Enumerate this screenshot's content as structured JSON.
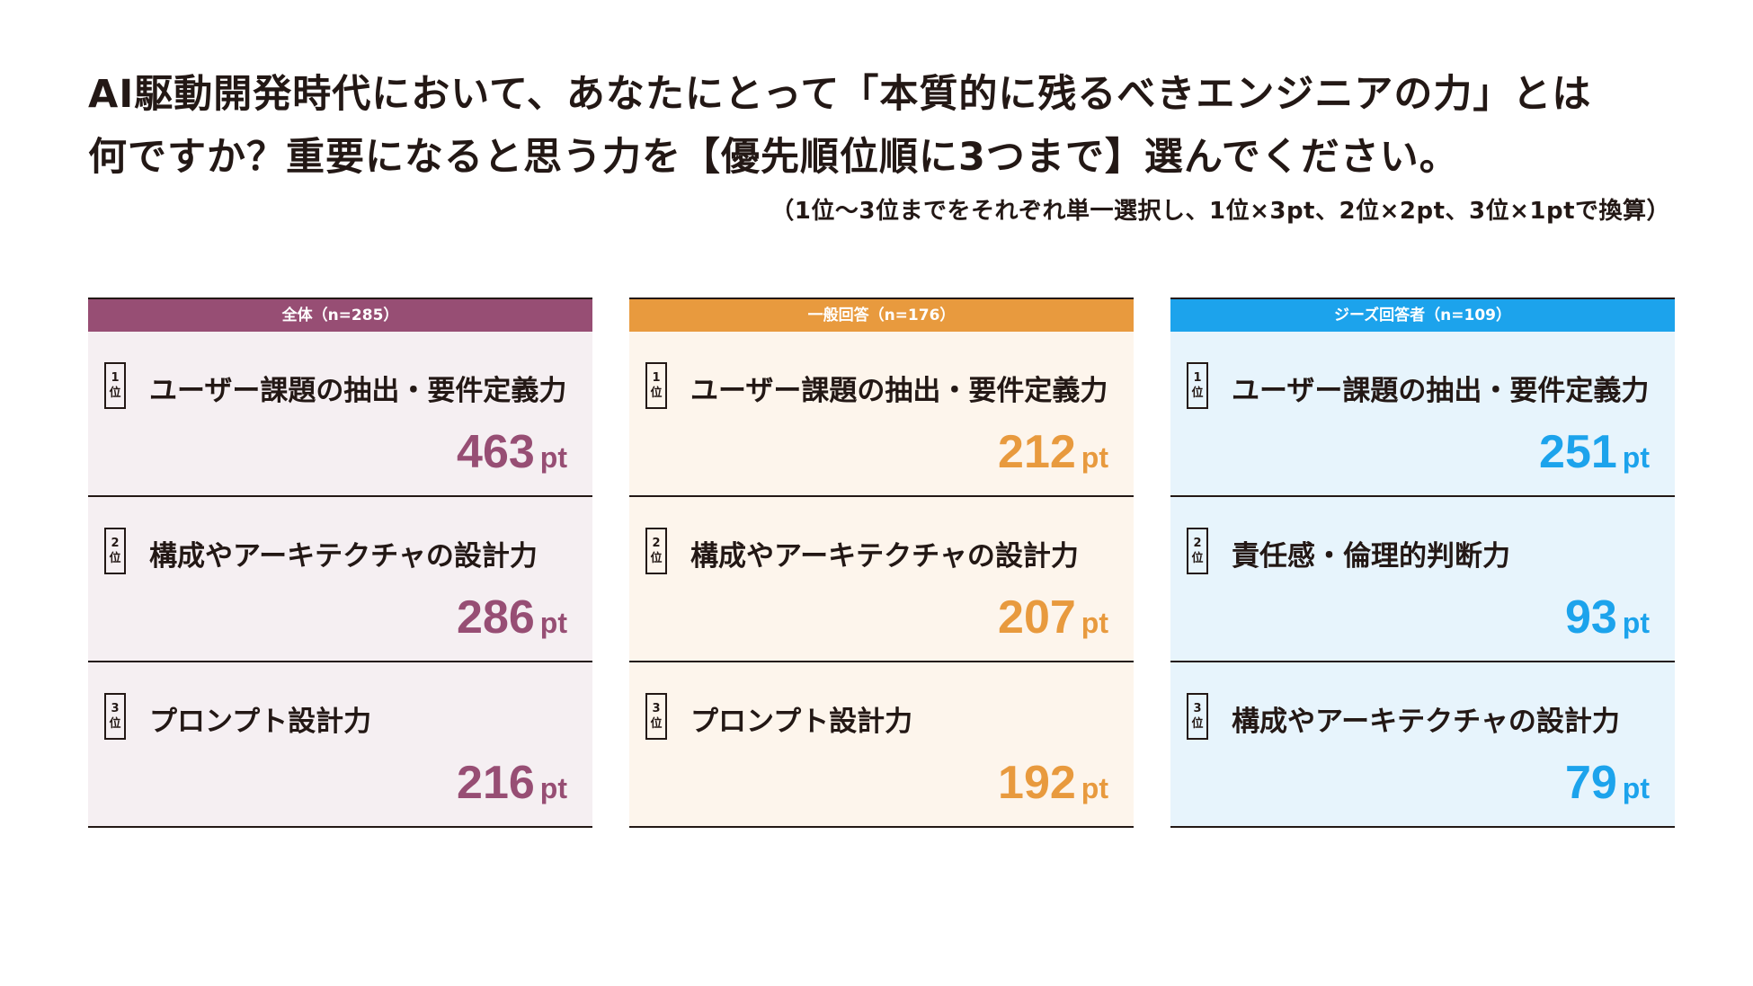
{
  "title_line1": "AI駆動開発時代において、あなたにとって「本質的に残るべきエンジニアの力」とは",
  "title_line2": "何ですか？重要になると思う力を【優先順位順に3つまで】選んでください。",
  "note": "（1位〜3位までをそれぞれ単一選択し、1位×3pt、2位×2pt、3位×1ptで換算）",
  "rank_char": "位",
  "unit": "pt",
  "panels": [
    {
      "header": "全体（n=285）",
      "accent": "#974E74",
      "bg": "#F5EFF2",
      "items": [
        {
          "rank": "1",
          "label": "ユーザー課題の抽出・要件定義力",
          "score": "463"
        },
        {
          "rank": "2",
          "label": "構成やアーキテクチャの設計力",
          "score": "286"
        },
        {
          "rank": "3",
          "label": "プロンプト設計力",
          "score": "216"
        }
      ]
    },
    {
      "header": "一般回答（n=176）",
      "accent": "#E89A3E",
      "bg": "#FDF5EC",
      "items": [
        {
          "rank": "1",
          "label": "ユーザー課題の抽出・要件定義力",
          "score": "212"
        },
        {
          "rank": "2",
          "label": "構成やアーキテクチャの設計力",
          "score": "207"
        },
        {
          "rank": "3",
          "label": "プロンプト設計力",
          "score": "192"
        }
      ]
    },
    {
      "header": "ジーズ回答者（n=109）",
      "accent": "#1CA3EC",
      "bg": "#E7F4FC",
      "items": [
        {
          "rank": "1",
          "label": "ユーザー課題の抽出・要件定義力",
          "score": "251"
        },
        {
          "rank": "2",
          "label": "責任感・倫理的判断力",
          "score": "93"
        },
        {
          "rank": "3",
          "label": "構成やアーキテクチャの設計力",
          "score": "79"
        }
      ]
    }
  ]
}
